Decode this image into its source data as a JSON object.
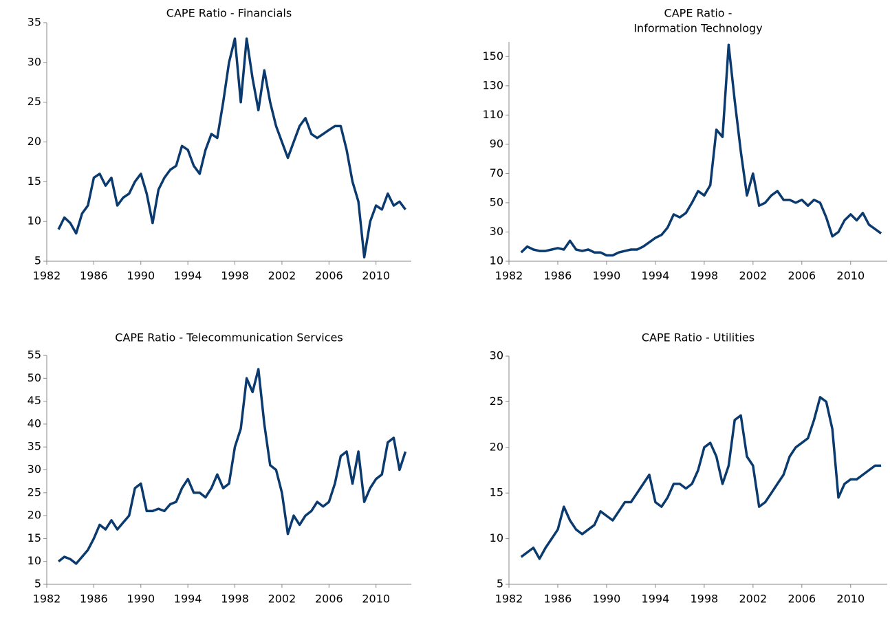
{
  "chart_data": [
    {
      "type": "line",
      "title": "CAPE Ratio - Financials",
      "x": [
        1983,
        1983.5,
        1984,
        1984.5,
        1985,
        1985.5,
        1986,
        1986.5,
        1987,
        1987.5,
        1988,
        1988.5,
        1989,
        1989.5,
        1990,
        1990.5,
        1991,
        1991.5,
        1992,
        1992.5,
        1993,
        1993.5,
        1994,
        1994.5,
        1995,
        1995.5,
        1996,
        1996.5,
        1997,
        1997.5,
        1998,
        1998.5,
        1999,
        1999.5,
        2000,
        2000.5,
        2001,
        2001.5,
        2002,
        2002.5,
        2003,
        2003.5,
        2004,
        2004.5,
        2005,
        2005.5,
        2006,
        2006.5,
        2007,
        2007.5,
        2008,
        2008.5,
        2009,
        2009.5,
        2010,
        2010.5,
        2011,
        2011.5,
        2012,
        2012.5
      ],
      "values": [
        9,
        10.5,
        9.8,
        8.5,
        11,
        12,
        15.5,
        16,
        14.5,
        15.5,
        12,
        13,
        13.5,
        15,
        16,
        13.5,
        9.8,
        14,
        15.5,
        16.5,
        17,
        19.5,
        19,
        17,
        16,
        19,
        21,
        20.5,
        25,
        30,
        33,
        25,
        33,
        28,
        24,
        29,
        25,
        22,
        20,
        18,
        20,
        22,
        23,
        21,
        20.5,
        21,
        21.5,
        22,
        22,
        19,
        15,
        12.5,
        5.5,
        10,
        12,
        11.5,
        13.5,
        12,
        12.5,
        11.5
      ],
      "color": "#0b3a6e",
      "xlim": [
        1982,
        2013
      ],
      "xticks": [
        1982,
        1986,
        1990,
        1994,
        1998,
        2002,
        2006,
        2010
      ],
      "ylim": [
        5,
        35
      ],
      "yticks": [
        5,
        10,
        15,
        20,
        25,
        30,
        35
      ]
    },
    {
      "type": "line",
      "title": [
        "CAPE Ratio -",
        "Information Technology"
      ],
      "x": [
        1983,
        1983.5,
        1984,
        1984.5,
        1985,
        1985.5,
        1986,
        1986.5,
        1987,
        1987.5,
        1988,
        1988.5,
        1989,
        1989.5,
        1990,
        1990.5,
        1991,
        1991.5,
        1992,
        1992.5,
        1993,
        1993.5,
        1994,
        1994.5,
        1995,
        1995.5,
        1996,
        1996.5,
        1997,
        1997.5,
        1998,
        1998.5,
        1999,
        1999.5,
        2000,
        2000.5,
        2001,
        2001.5,
        2002,
        2002.5,
        2003,
        2003.5,
        2004,
        2004.5,
        2005,
        2005.5,
        2006,
        2006.5,
        2007,
        2007.5,
        2008,
        2008.5,
        2009,
        2009.5,
        2010,
        2010.5,
        2011,
        2011.5,
        2012,
        2012.5
      ],
      "values": [
        16,
        20,
        18,
        17,
        17,
        18,
        19,
        18,
        24,
        18,
        17,
        18,
        16,
        16,
        14,
        14,
        16,
        17,
        18,
        18,
        20,
        23,
        26,
        28,
        33,
        42,
        40,
        43,
        50,
        58,
        55,
        62,
        100,
        95,
        158,
        120,
        85,
        55,
        70,
        48,
        50,
        55,
        58,
        52,
        52,
        50,
        52,
        48,
        52,
        50,
        40,
        27,
        30,
        38,
        42,
        38,
        43,
        35,
        32,
        29
      ],
      "color": "#0b3a6e",
      "xlim": [
        1982,
        2013
      ],
      "xticks": [
        1982,
        1986,
        1990,
        1994,
        1998,
        2002,
        2006,
        2010
      ],
      "ylim": [
        10,
        160
      ],
      "yticks": [
        10,
        30,
        50,
        70,
        90,
        110,
        130,
        150
      ]
    },
    {
      "type": "line",
      "title": "CAPE Ratio - Telecommunication Services",
      "x": [
        1983,
        1983.5,
        1984,
        1984.5,
        1985,
        1985.5,
        1986,
        1986.5,
        1987,
        1987.5,
        1988,
        1988.5,
        1989,
        1989.5,
        1990,
        1990.5,
        1991,
        1991.5,
        1992,
        1992.5,
        1993,
        1993.5,
        1994,
        1994.5,
        1995,
        1995.5,
        1996,
        1996.5,
        1997,
        1997.5,
        1998,
        1998.5,
        1999,
        1999.5,
        2000,
        2000.5,
        2001,
        2001.5,
        2002,
        2002.5,
        2003,
        2003.5,
        2004,
        2004.5,
        2005,
        2005.5,
        2006,
        2006.5,
        2007,
        2007.5,
        2008,
        2008.5,
        2009,
        2009.5,
        2010,
        2010.5,
        2011,
        2011.5,
        2012,
        2012.5
      ],
      "values": [
        10,
        11,
        10.5,
        9.5,
        11,
        12.5,
        15,
        18,
        17,
        19,
        17,
        18.5,
        20,
        26,
        27,
        21,
        21,
        21.5,
        21,
        22.5,
        23,
        26,
        28,
        25,
        25,
        24,
        26,
        29,
        26,
        27,
        35,
        39,
        50,
        47,
        52,
        40,
        31,
        30,
        25,
        16,
        20,
        18,
        20,
        21,
        23,
        22,
        23,
        27,
        33,
        34,
        27,
        34,
        23,
        26,
        28,
        29,
        36,
        37,
        30,
        34
      ],
      "color": "#0b3a6e",
      "xlim": [
        1982,
        2013
      ],
      "xticks": [
        1982,
        1986,
        1990,
        1994,
        1998,
        2002,
        2006,
        2010
      ],
      "ylim": [
        5,
        55
      ],
      "yticks": [
        5,
        10,
        15,
        20,
        25,
        30,
        35,
        40,
        45,
        50,
        55
      ]
    },
    {
      "type": "line",
      "title": "CAPE Ratio - Utilities",
      "x": [
        1983,
        1983.5,
        1984,
        1984.5,
        1985,
        1985.5,
        1986,
        1986.5,
        1987,
        1987.5,
        1988,
        1988.5,
        1989,
        1989.5,
        1990,
        1990.5,
        1991,
        1991.5,
        1992,
        1992.5,
        1993,
        1993.5,
        1994,
        1994.5,
        1995,
        1995.5,
        1996,
        1996.5,
        1997,
        1997.5,
        1998,
        1998.5,
        1999,
        1999.5,
        2000,
        2000.5,
        2001,
        2001.5,
        2002,
        2002.5,
        2003,
        2003.5,
        2004,
        2004.5,
        2005,
        2005.5,
        2006,
        2006.5,
        2007,
        2007.5,
        2008,
        2008.5,
        2009,
        2009.5,
        2010,
        2010.5,
        2011,
        2011.5,
        2012,
        2012.5
      ],
      "values": [
        8,
        8.5,
        9,
        7.8,
        9,
        10,
        11,
        13.5,
        12,
        11,
        10.5,
        11,
        11.5,
        13,
        12.5,
        12,
        13,
        14,
        14,
        15,
        16,
        17,
        14,
        13.5,
        14.5,
        16,
        16,
        15.5,
        16,
        17.5,
        20,
        20.5,
        19,
        16,
        18,
        23,
        23.5,
        19,
        18,
        13.5,
        14,
        15,
        16,
        17,
        19,
        20,
        20.5,
        21,
        23,
        25.5,
        25,
        22,
        14.5,
        16,
        16.5,
        16.5,
        17,
        17.5,
        18,
        18
      ],
      "color": "#0b3a6e",
      "xlim": [
        1982,
        2013
      ],
      "xticks": [
        1982,
        1986,
        1990,
        1994,
        1998,
        2002,
        2006,
        2010
      ],
      "ylim": [
        5,
        30
      ],
      "yticks": [
        5,
        10,
        15,
        20,
        25,
        30
      ]
    }
  ]
}
